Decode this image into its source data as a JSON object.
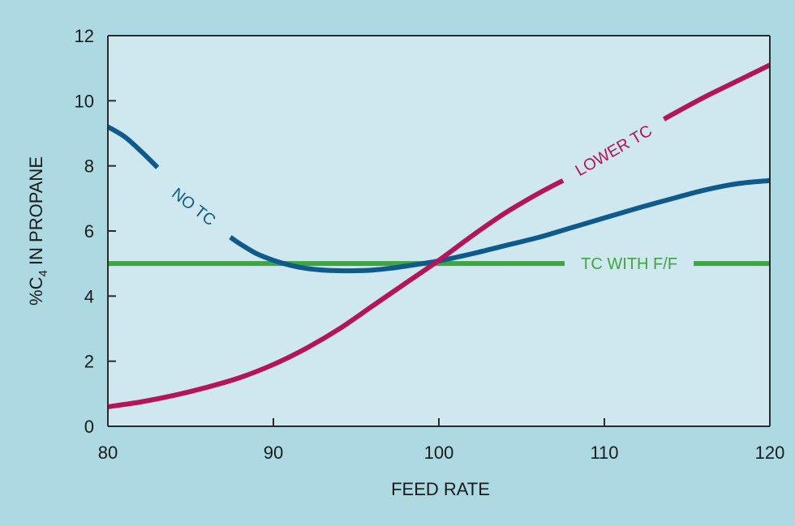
{
  "chart_data": {
    "type": "line",
    "title": "",
    "xlabel": "FEED RATE",
    "ylabel": {
      "prefix": "%C",
      "subscript": "4",
      "suffix": " IN PROPANE"
    },
    "xlim": [
      80,
      120
    ],
    "ylim": [
      0,
      12
    ],
    "x_ticks": [
      80,
      90,
      100,
      110,
      120
    ],
    "y_ticks": [
      0,
      2,
      4,
      6,
      8,
      10,
      12
    ],
    "grid": false,
    "legend": "inline labels on curves",
    "colors": {
      "page_background": "#add9e2",
      "plot_background": "#cfe8ef",
      "axis": "#2a2a2a"
    },
    "series": [
      {
        "name": "NO TC",
        "color": "#0f5a8c",
        "x": [
          80,
          81,
          82,
          83,
          84,
          85,
          86,
          87,
          88,
          89,
          90,
          91,
          92,
          93,
          94,
          95,
          96,
          97,
          98,
          99,
          100,
          102,
          104,
          106,
          108,
          110,
          112,
          114,
          116,
          118,
          120
        ],
        "y": [
          9.2,
          8.9,
          8.45,
          7.95,
          7.4,
          6.85,
          6.35,
          5.95,
          5.6,
          5.3,
          5.1,
          4.95,
          4.85,
          4.8,
          4.78,
          4.78,
          4.8,
          4.85,
          4.92,
          5.0,
          5.08,
          5.3,
          5.55,
          5.8,
          6.1,
          6.4,
          6.7,
          6.98,
          7.25,
          7.45,
          7.55
        ],
        "label_gap_x": [
          83.0,
          87.4
        ]
      },
      {
        "name": "LOWER TC",
        "color": "#b5135a",
        "x": [
          80,
          82,
          84,
          86,
          88,
          90,
          92,
          94,
          96,
          98,
          100,
          102,
          104,
          106,
          107.5,
          110,
          112,
          114,
          116,
          118,
          120
        ],
        "y": [
          0.6,
          0.75,
          0.95,
          1.2,
          1.5,
          1.9,
          2.4,
          3.0,
          3.7,
          4.4,
          5.1,
          5.85,
          6.55,
          7.15,
          7.55,
          8.3,
          8.95,
          9.55,
          10.1,
          10.6,
          11.1
        ],
        "label_gap_x": [
          107.5,
          113.6
        ]
      },
      {
        "name": "TC WITH F/F",
        "color": "#3ea63e",
        "x": [
          80,
          120
        ],
        "y": [
          5.0,
          5.0
        ],
        "label_gap_x": [
          107.6,
          115.4
        ]
      }
    ]
  }
}
